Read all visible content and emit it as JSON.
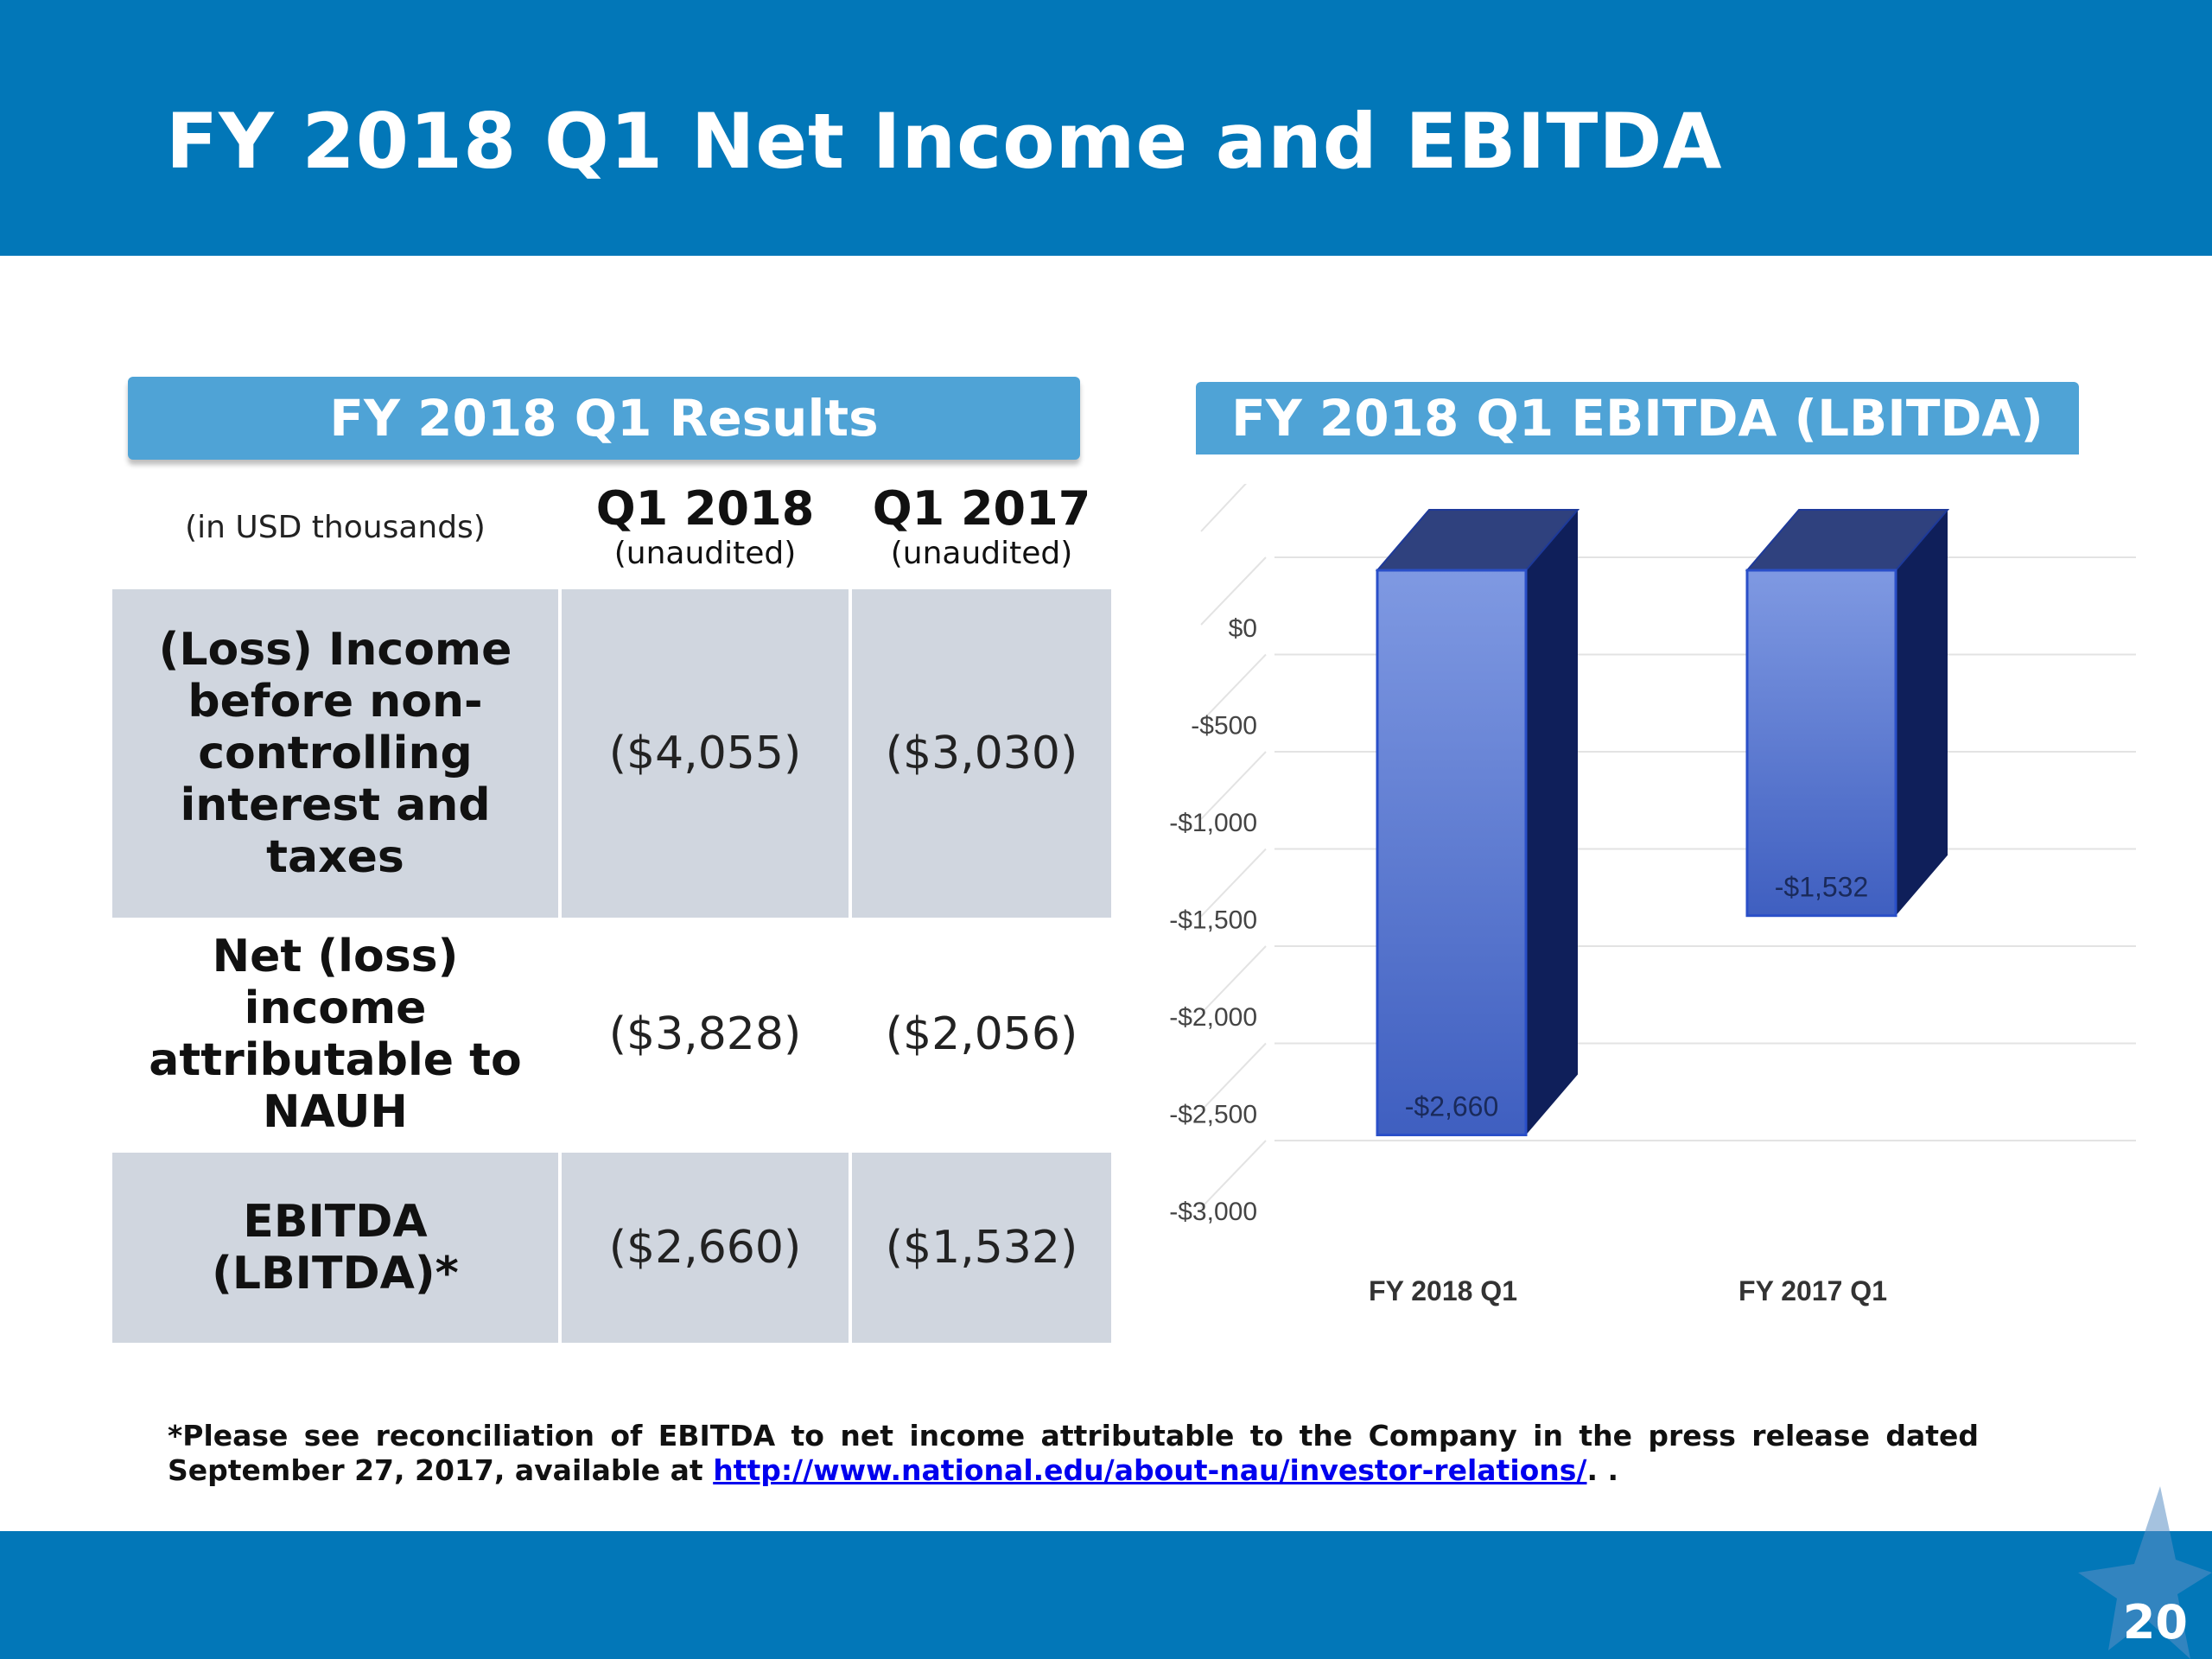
{
  "slide": {
    "title": "FY 2018 Q1 Net Income and EBITDA",
    "page_number": "20"
  },
  "results": {
    "heading": "FY 2018 Q1 Results",
    "units_label": "(in USD thousands)",
    "columns": [
      {
        "period": "Q1 2018",
        "note": "(unaudited)"
      },
      {
        "period": "Q1 2017",
        "note": "(unaudited)"
      }
    ],
    "rows": [
      {
        "label": "(Loss) Income before non-controlling interest and taxes",
        "q1_2018": "($4,055)",
        "q1_2017": "($3,030)"
      },
      {
        "label": "Net (loss) income attributable to NAUH",
        "q1_2018": "($3,828)",
        "q1_2017": "($2,056)"
      },
      {
        "label": "EBITDA (LBITDA)*",
        "q1_2018": "($2,660)",
        "q1_2017": "($1,532)"
      }
    ]
  },
  "chart_heading": "FY 2018 Q1 EBITDA (LBITDA)",
  "chart_data": {
    "type": "bar",
    "categories": [
      "FY 2018 Q1",
      "FY 2017 Q1"
    ],
    "values": [
      -2660,
      -1532
    ],
    "data_labels": [
      "-$2,660",
      "-$1,532"
    ],
    "y_ticks": [
      0,
      -500,
      -1000,
      -1500,
      -2000,
      -2500,
      -3000
    ],
    "y_tick_labels": [
      "$0",
      "-$500",
      "-$1,000",
      "-$1,500",
      "-$2,000",
      "-$2,500",
      "-$3,000"
    ],
    "ylim": [
      -3000,
      0
    ],
    "grid": true,
    "legend": "none",
    "style": "3d-column",
    "colors": {
      "front_top": "#7f99e2",
      "front_bottom": "#3f5fc0",
      "side": "#0f1f5a",
      "top": "#2f417e"
    }
  },
  "footnote": {
    "text": "*Please see reconciliation of EBITDA to net income attributable to the Company in the press release dated September 27, 2017, available at ",
    "link_text": "http://www.national.edu/about-nau/investor-relations/",
    "suffix": ". ."
  },
  "colors": {
    "header_band": "#0277b8",
    "panel_heading": "#4fa3d6",
    "table_shade": "#d0d6df"
  }
}
